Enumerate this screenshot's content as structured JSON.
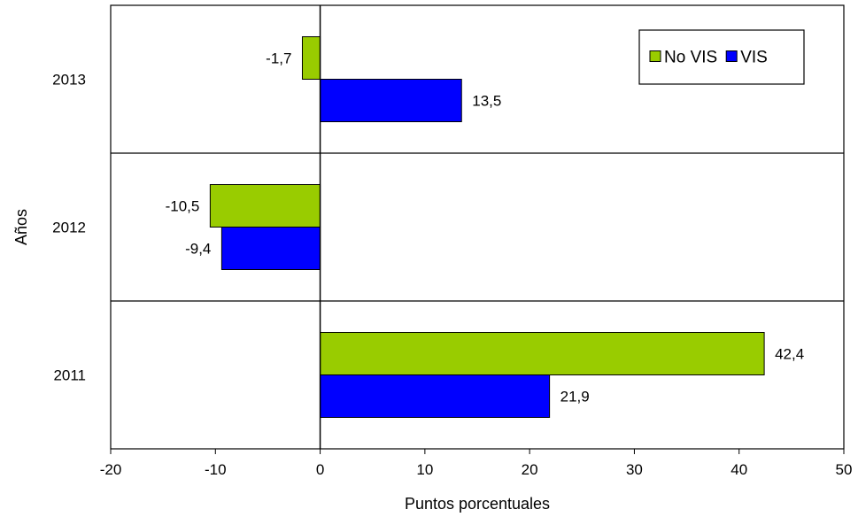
{
  "chart_data": {
    "type": "bar",
    "orientation": "horizontal",
    "categories": [
      "2013",
      "2012",
      "2011"
    ],
    "series": [
      {
        "name": "No VIS",
        "color": "#99cc00",
        "values": [
          -1.7,
          -10.5,
          42.4
        ],
        "labels": [
          "-1,7",
          "-10,5",
          "42,4"
        ]
      },
      {
        "name": "VIS",
        "color": "#0000ff",
        "values": [
          13.5,
          -9.4,
          21.9
        ],
        "labels": [
          "13,5",
          "-9,4",
          "21,9"
        ]
      }
    ],
    "xlim": [
      -20,
      50
    ],
    "xticks": [
      -20,
      -10,
      0,
      10,
      20,
      30,
      40,
      50
    ],
    "xtick_labels": [
      "-20",
      "-10",
      "0",
      "10",
      "20",
      "30",
      "40",
      "50"
    ],
    "xlabel": "Puntos porcentuales",
    "ylabel": "Años",
    "grid": "horizontal lines between categories",
    "legend_position": "top-right"
  }
}
